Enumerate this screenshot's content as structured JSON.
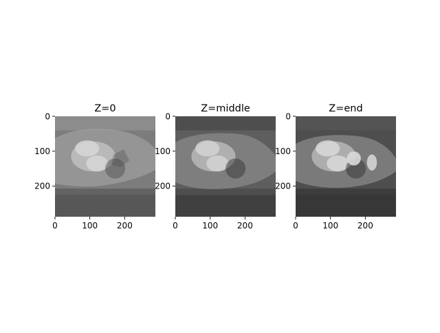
{
  "figure": {
    "background": "#ffffff",
    "panels": [
      {
        "title": "Z=0",
        "xticks": [
          "0",
          "100",
          "200"
        ],
        "yticks": [
          "0",
          "100",
          "200"
        ],
        "colormap": "gray",
        "tones": {
          "bg": "#7c7c7c",
          "top": "#8e8e8e",
          "band": "#5c5c5c",
          "bottom": "#555555",
          "tissue": "#9e9e9e",
          "light": "#c2c2c2",
          "bright": "#d6d6d6",
          "dark": "#4a4a4a"
        }
      },
      {
        "title": "Z=middle",
        "xticks": [
          "0",
          "100",
          "200"
        ],
        "yticks": [
          "0",
          "100",
          "200"
        ],
        "colormap": "gray",
        "tones": {
          "bg": "#5e5e5e",
          "top": "#4c4c4c",
          "band": "#4a4a4a",
          "bottom": "#3e3e3e",
          "tissue": "#8a8a8a",
          "light": "#bdbdbd",
          "bright": "#d3d3d3",
          "dark": "#2e2e2e"
        }
      },
      {
        "title": "Z=end",
        "xticks": [
          "0",
          "100",
          "200"
        ],
        "yticks": [
          "0",
          "100",
          "200"
        ],
        "colormap": "gray",
        "tones": {
          "bg": "#4e4e4e",
          "top": "#555555",
          "band": "#3a3a3a",
          "bottom": "#363636",
          "tissue": "#8a8a8a",
          "light": "#bababa",
          "bright": "#d9d9d9",
          "dark": "#2a2a2a"
        }
      }
    ]
  }
}
